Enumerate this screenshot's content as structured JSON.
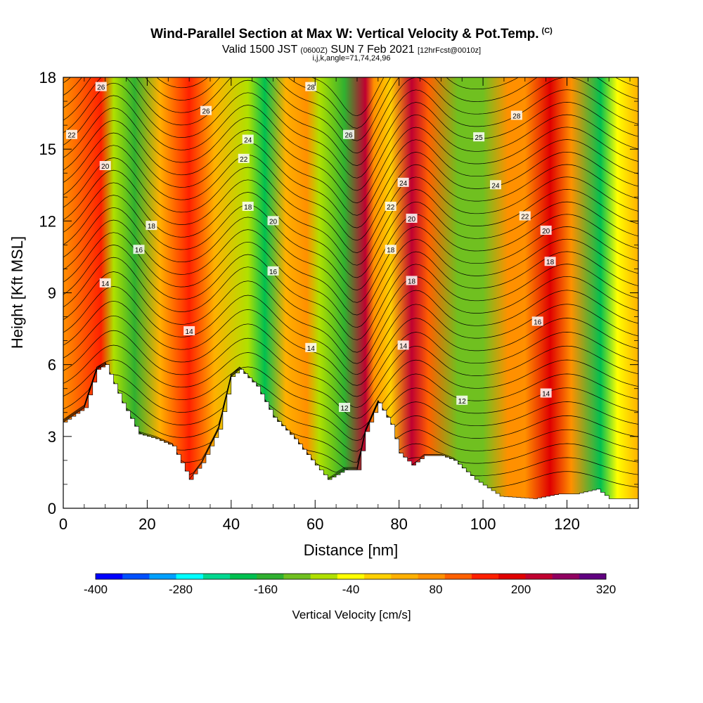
{
  "header": {
    "title": "Wind-Parallel Section at Max W: Vertical Velocity & Pot.Temp.",
    "copyright": "(C)",
    "valid_prefix": "Valid 1500 JST",
    "valid_utc": "(0600Z)",
    "valid_date": "SUN 7 Feb 2021",
    "forecast": "[12hrFcst@0010z]",
    "indices": "i,j,k,angle=71,74,24,96"
  },
  "chart_data": {
    "type": "heatmap",
    "xlabel": "Distance [nm]",
    "ylabel": "Height [Kft MSL]",
    "xlim": [
      0,
      137
    ],
    "ylim": [
      0,
      18
    ],
    "x_ticks": [
      "0",
      "20",
      "40",
      "60",
      "80",
      "100",
      "120"
    ],
    "y_ticks": [
      "0",
      "3",
      "6",
      "9",
      "12",
      "15",
      "18"
    ],
    "colorbar": {
      "label": "Vertical Velocity [cm/s]",
      "range": [
        -400,
        320
      ],
      "tick_labels": [
        "-400",
        "-280",
        "-160",
        "-40",
        "80",
        "200",
        "320"
      ],
      "colors": [
        "#0000ff",
        "#0050ff",
        "#00a0ff",
        "#00ffff",
        "#00d890",
        "#00c050",
        "#30b030",
        "#70c020",
        "#b0e000",
        "#ffff00",
        "#ffd000",
        "#ffb000",
        "#ff9000",
        "#ff6000",
        "#ff2000",
        "#e00000",
        "#c00030",
        "#900060",
        "#600080"
      ]
    },
    "terrain": [
      [
        0,
        3.6
      ],
      [
        5,
        4.2
      ],
      [
        8,
        5.8
      ],
      [
        10,
        6.0
      ],
      [
        14,
        4.4
      ],
      [
        18,
        3.1
      ],
      [
        22,
        2.9
      ],
      [
        26,
        2.6
      ],
      [
        30,
        1.2
      ],
      [
        33,
        1.9
      ],
      [
        37,
        3.3
      ],
      [
        40,
        5.5
      ],
      [
        42,
        5.8
      ],
      [
        46,
        5.1
      ],
      [
        50,
        3.8
      ],
      [
        55,
        2.9
      ],
      [
        60,
        1.8
      ],
      [
        63,
        1.2
      ],
      [
        67,
        1.6
      ],
      [
        70,
        1.6
      ],
      [
        72,
        3.2
      ],
      [
        75,
        4.4
      ],
      [
        78,
        3.5
      ],
      [
        80,
        2.3
      ],
      [
        83,
        1.8
      ],
      [
        86,
        2.2
      ],
      [
        90,
        2.2
      ],
      [
        93,
        2.0
      ],
      [
        98,
        1.2
      ],
      [
        104,
        0.5
      ],
      [
        112,
        0.4
      ],
      [
        118,
        0.6
      ],
      [
        122,
        0.6
      ],
      [
        127,
        0.8
      ],
      [
        130,
        0.4
      ],
      [
        137,
        0.4
      ]
    ],
    "updraft_bands_w": [
      [
        0,
        60
      ],
      [
        9,
        140
      ],
      [
        12,
        -60
      ],
      [
        17,
        -140
      ],
      [
        23,
        40
      ],
      [
        30,
        160
      ],
      [
        36,
        40
      ],
      [
        44,
        -60
      ],
      [
        48,
        -200
      ],
      [
        53,
        20
      ],
      [
        58,
        80
      ],
      [
        61,
        -60
      ],
      [
        67,
        -160
      ],
      [
        72,
        240
      ],
      [
        74,
        80
      ],
      [
        78,
        0
      ],
      [
        83,
        240
      ],
      [
        87,
        120
      ],
      [
        94,
        -100
      ],
      [
        100,
        -120
      ],
      [
        106,
        60
      ],
      [
        110,
        80
      ],
      [
        116,
        200
      ],
      [
        121,
        60
      ],
      [
        128,
        -190
      ],
      [
        132,
        -40
      ],
      [
        137,
        40
      ]
    ],
    "theta_contours_c": [
      12,
      14,
      16,
      18,
      20,
      22,
      24,
      26,
      28
    ],
    "theta_labels": [
      {
        "text": "26",
        "x": 9,
        "y": 17.6
      },
      {
        "text": "26",
        "x": 34,
        "y": 16.6
      },
      {
        "text": "28",
        "x": 59,
        "y": 17.6
      },
      {
        "text": "28",
        "x": 108,
        "y": 16.4
      },
      {
        "text": "22",
        "x": 2,
        "y": 15.6
      },
      {
        "text": "24",
        "x": 44,
        "y": 15.4
      },
      {
        "text": "26",
        "x": 68,
        "y": 15.6
      },
      {
        "text": "25",
        "x": 99,
        "y": 15.5
      },
      {
        "text": "22",
        "x": 43,
        "y": 14.6
      },
      {
        "text": "20",
        "x": 10,
        "y": 14.3
      },
      {
        "text": "24",
        "x": 81,
        "y": 13.6
      },
      {
        "text": "24",
        "x": 103,
        "y": 13.5
      },
      {
        "text": "18",
        "x": 44,
        "y": 12.6
      },
      {
        "text": "20",
        "x": 50,
        "y": 12.0
      },
      {
        "text": "22",
        "x": 78,
        "y": 12.6
      },
      {
        "text": "20",
        "x": 83,
        "y": 12.1
      },
      {
        "text": "22",
        "x": 110,
        "y": 12.2
      },
      {
        "text": "20",
        "x": 115,
        "y": 11.6
      },
      {
        "text": "18",
        "x": 21,
        "y": 11.8
      },
      {
        "text": "16",
        "x": 18,
        "y": 10.8
      },
      {
        "text": "18",
        "x": 78,
        "y": 10.8
      },
      {
        "text": "18",
        "x": 116,
        "y": 10.3
      },
      {
        "text": "16",
        "x": 50,
        "y": 9.9
      },
      {
        "text": "14",
        "x": 10,
        "y": 9.4
      },
      {
        "text": "18",
        "x": 83,
        "y": 9.5
      },
      {
        "text": "16",
        "x": 113,
        "y": 7.8
      },
      {
        "text": "14",
        "x": 30,
        "y": 7.4
      },
      {
        "text": "14",
        "x": 59,
        "y": 6.7
      },
      {
        "text": "14",
        "x": 81,
        "y": 6.8
      },
      {
        "text": "14",
        "x": 115,
        "y": 4.8
      },
      {
        "text": "12",
        "x": 67,
        "y": 4.2
      },
      {
        "text": "12",
        "x": 95,
        "y": 4.5
      }
    ]
  }
}
